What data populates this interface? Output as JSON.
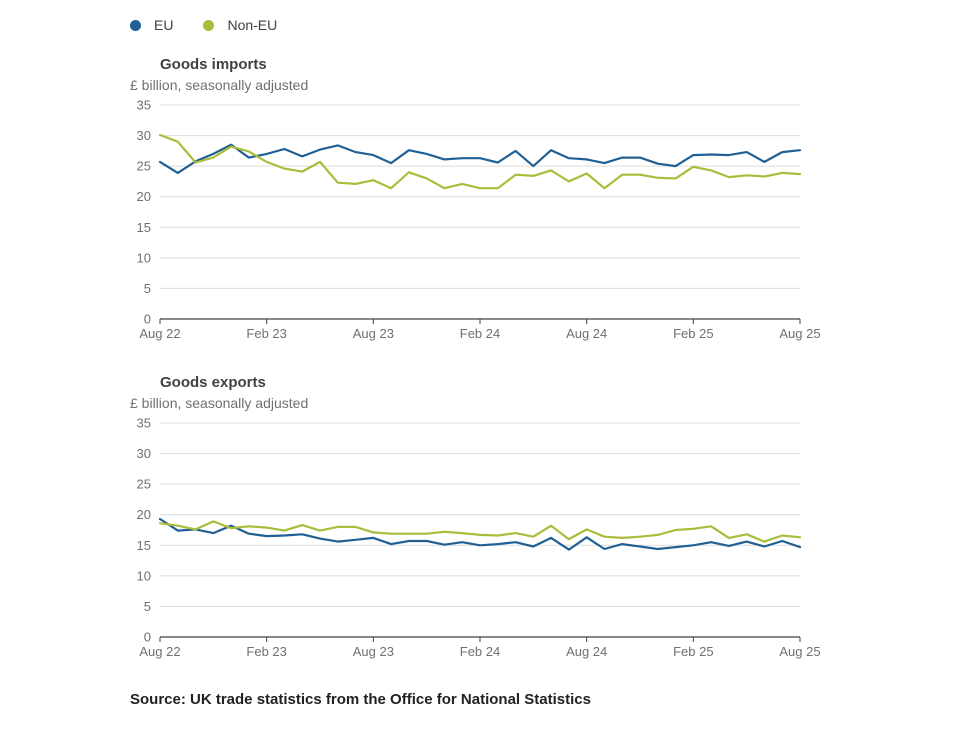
{
  "legend": [
    {
      "name": "EU",
      "color": "#206095"
    },
    {
      "name": "Non-EU",
      "color": "#A8BD3A"
    }
  ],
  "colors": {
    "eu": "#206095",
    "non_eu": "#A8BD3A",
    "grid": "#dcdcdc",
    "axis": "#414042"
  },
  "source": "Source: UK trade statistics from the Office for National Statistics",
  "chart_data": [
    {
      "type": "line",
      "title": "Goods imports",
      "subtitle": "£ billion, seasonally adjusted",
      "ylim": [
        0,
        35
      ],
      "yticks": [
        "0",
        "5",
        "10",
        "15",
        "20",
        "25",
        "30",
        "35"
      ],
      "xticks": [
        "Aug 22",
        "Feb 23",
        "Aug 23",
        "Feb 24",
        "Aug 24",
        "Feb 25",
        "Aug 25"
      ],
      "x_range": [
        "Aug 22",
        "Aug 25"
      ],
      "grid": true,
      "series": [
        {
          "name": "EU",
          "values": [
            25.7,
            23.9,
            25.8,
            27.0,
            28.5,
            26.4,
            27.0,
            27.8,
            26.6,
            27.7,
            28.4,
            27.3,
            26.8,
            25.5,
            27.6,
            27.0,
            26.1,
            26.3,
            26.3,
            25.6,
            27.5,
            25.0,
            27.6,
            26.3,
            26.1,
            25.5,
            26.4,
            26.4,
            25.4,
            25.0,
            26.8,
            26.9,
            26.8,
            27.3,
            25.7,
            27.3,
            27.6
          ]
        },
        {
          "name": "Non-EU",
          "values": [
            30.1,
            29.0,
            25.6,
            26.4,
            28.2,
            27.4,
            25.7,
            24.6,
            24.1,
            25.7,
            22.3,
            22.1,
            22.7,
            21.4,
            24.0,
            23.0,
            21.4,
            22.1,
            21.4,
            21.4,
            23.6,
            23.4,
            24.3,
            22.5,
            23.8,
            21.4,
            23.6,
            23.6,
            23.1,
            23.0,
            24.9,
            24.3,
            23.2,
            23.5,
            23.3,
            23.9,
            23.7
          ]
        }
      ]
    },
    {
      "type": "line",
      "title": "Goods exports",
      "subtitle": "£ billion, seasonally adjusted",
      "ylim": [
        0,
        35
      ],
      "yticks": [
        "0",
        "5",
        "10",
        "15",
        "20",
        "25",
        "30",
        "35"
      ],
      "xticks": [
        "Aug 22",
        "Feb 23",
        "Aug 23",
        "Feb 24",
        "Aug 24",
        "Feb 25",
        "Aug 25"
      ],
      "x_range": [
        "Aug 22",
        "Aug 25"
      ],
      "grid": true,
      "series": [
        {
          "name": "EU",
          "values": [
            19.3,
            17.4,
            17.6,
            17.0,
            18.2,
            16.9,
            16.5,
            16.6,
            16.8,
            16.1,
            15.6,
            15.9,
            16.2,
            15.2,
            15.7,
            15.7,
            15.1,
            15.5,
            15.0,
            15.2,
            15.5,
            14.8,
            16.2,
            14.3,
            16.3,
            14.4,
            15.2,
            14.8,
            14.4,
            14.7,
            15.0,
            15.5,
            14.9,
            15.6,
            14.8,
            15.7,
            14.7
          ]
        },
        {
          "name": "Non-EU",
          "values": [
            18.6,
            18.2,
            17.6,
            18.9,
            17.8,
            18.1,
            17.9,
            17.4,
            18.3,
            17.4,
            18.0,
            18.0,
            17.1,
            16.9,
            16.9,
            16.9,
            17.2,
            17.0,
            16.7,
            16.6,
            17.0,
            16.4,
            18.2,
            16.0,
            17.6,
            16.4,
            16.2,
            16.4,
            16.7,
            17.5,
            17.7,
            18.1,
            16.2,
            16.8,
            15.6,
            16.6,
            16.3
          ]
        }
      ]
    }
  ]
}
